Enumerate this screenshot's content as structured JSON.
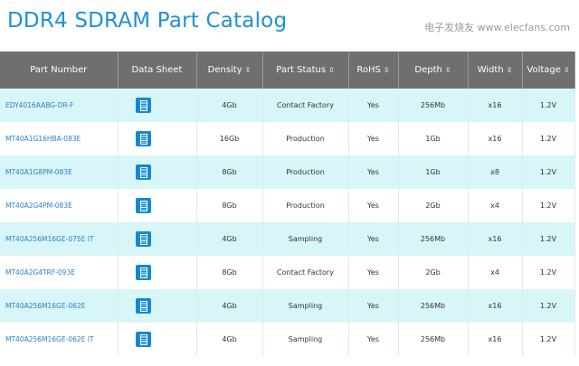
{
  "title": "DDR4 SDRAM Part Catalog",
  "columns": [
    {
      "label": "Part Number",
      "sortable": false
    },
    {
      "label": "Data Sheet",
      "sortable": false
    },
    {
      "label": "Density",
      "sortable": true
    },
    {
      "label": "Part Status",
      "sortable": true
    },
    {
      "label": "RoHS",
      "sortable": true
    },
    {
      "label": "Depth",
      "sortable": true
    },
    {
      "label": "Width",
      "sortable": true
    },
    {
      "label": "Voltage",
      "sortable": true
    }
  ],
  "sort_icon": "⇳",
  "rows": [
    [
      "EDY4016AABG-DR-F",
      "4Gb",
      "Contact Factory",
      "Yes",
      "256Mb",
      "x16",
      "1.2V"
    ],
    [
      "MT40A1G16HBA-083E",
      "16Gb",
      "Production",
      "Yes",
      "1Gb",
      "x16",
      "1.2V"
    ],
    [
      "MT40A1G8PM-083E",
      "8Gb",
      "Production",
      "Yes",
      "1Gb",
      "x8",
      "1.2V"
    ],
    [
      "MT40A2G4PM-083E",
      "8Gb",
      "Production",
      "Yes",
      "2Gb",
      "x4",
      "1.2V"
    ],
    [
      "MT40A256M16GE-075E IT",
      "4Gb",
      "Sampling",
      "Yes",
      "256Mb",
      "x16",
      "1.2V"
    ],
    [
      "MT40A2G4TRF-093E",
      "8Gb",
      "Contact Factory",
      "Yes",
      "2Gb",
      "x4",
      "1.2V"
    ],
    [
      "MT40A256M16GE-062E",
      "4Gb",
      "Sampling",
      "Yes",
      "256Mb",
      "x16",
      "1.2V"
    ],
    [
      "MT40A256M16GE-062E IT",
      "4Gb",
      "Sampling",
      "Yes",
      "256Mb",
      "x16",
      "1.2V"
    ]
  ],
  "watermark": "电子发烧友 www.elecfans.com",
  "colors": {
    "title": "#1e90d8",
    "header_bg": "#6f6f6f",
    "row_alt": "#d8f6f8",
    "icon": "#1488d8",
    "link": "#2a7fc9"
  }
}
